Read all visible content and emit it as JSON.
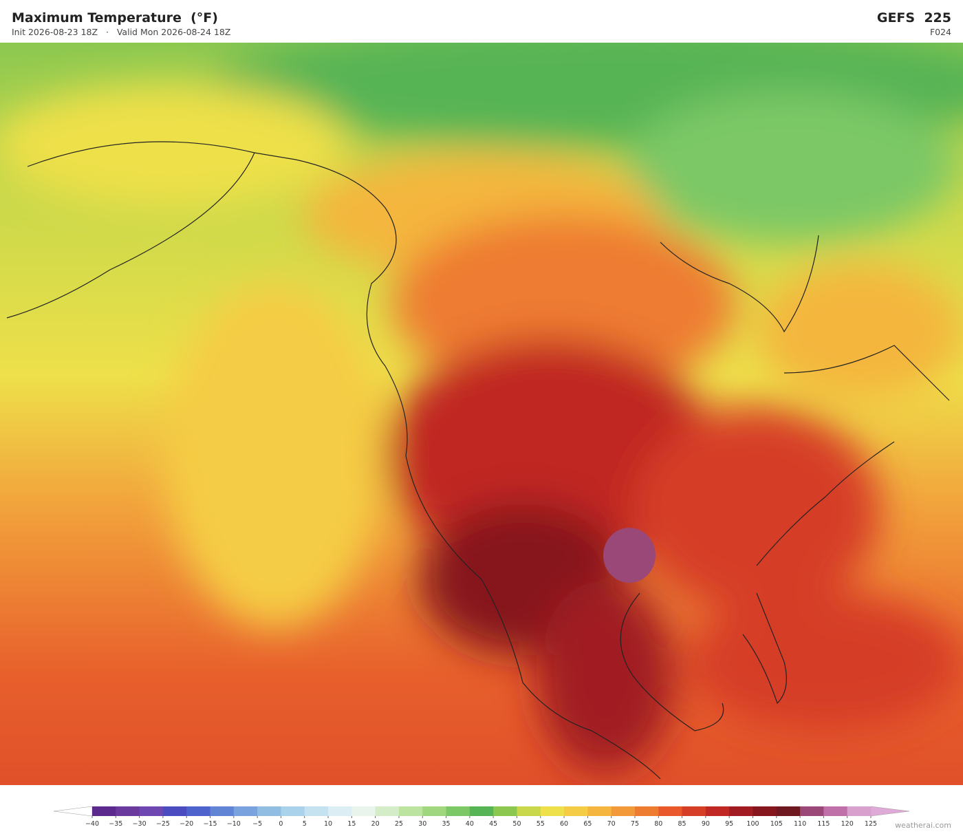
{
  "header": {
    "title": "Maximum Temperature  (°F)",
    "subtitle": "Init 2026-08-23 18Z   ·   Valid Mon 2026-08-24 18Z",
    "model": "GEFS  225",
    "forecast_hour": "F024"
  },
  "colorbar": {
    "ticks": [
      {
        "value": -40,
        "label": "−40"
      },
      {
        "value": -35,
        "label": "−35"
      },
      {
        "value": -30,
        "label": "−30"
      },
      {
        "value": -25,
        "label": "−25"
      },
      {
        "value": -20,
        "label": "−20"
      },
      {
        "value": -15,
        "label": "−15"
      },
      {
        "value": -10,
        "label": "−10"
      },
      {
        "value": -5,
        "label": "−5"
      },
      0,
      5,
      10,
      15,
      20,
      25,
      30,
      35,
      40,
      45,
      50,
      55,
      60,
      65,
      70,
      75,
      80,
      85,
      90,
      95,
      100,
      105,
      110,
      115,
      120,
      125
    ],
    "colors": [
      "#5b2a8c",
      "#6a3a9c",
      "#6e48b0",
      "#4a4cc0",
      "#4f63cc",
      "#6284d4",
      "#7aa2dc",
      "#92bde2",
      "#aad2ea",
      "#c4e2f0",
      "#dcedf3",
      "#e8f4ec",
      "#d4ecc8",
      "#bce3a0",
      "#a0d67e",
      "#7cc866",
      "#56b454",
      "#8cc850",
      "#c8d84a",
      "#eee04a",
      "#f5cc45",
      "#f4b63e",
      "#f29a3a",
      "#ee7c30",
      "#e8582a",
      "#d63e26",
      "#c02824",
      "#a01c22",
      "#86161e",
      "#6e1820",
      "#9a4878",
      "#c070a8",
      "#d8a0cc"
    ],
    "under_color": "#ffffff",
    "over_color": "#e0aad8"
  },
  "footer": {
    "credit": "weatherai.com"
  }
}
